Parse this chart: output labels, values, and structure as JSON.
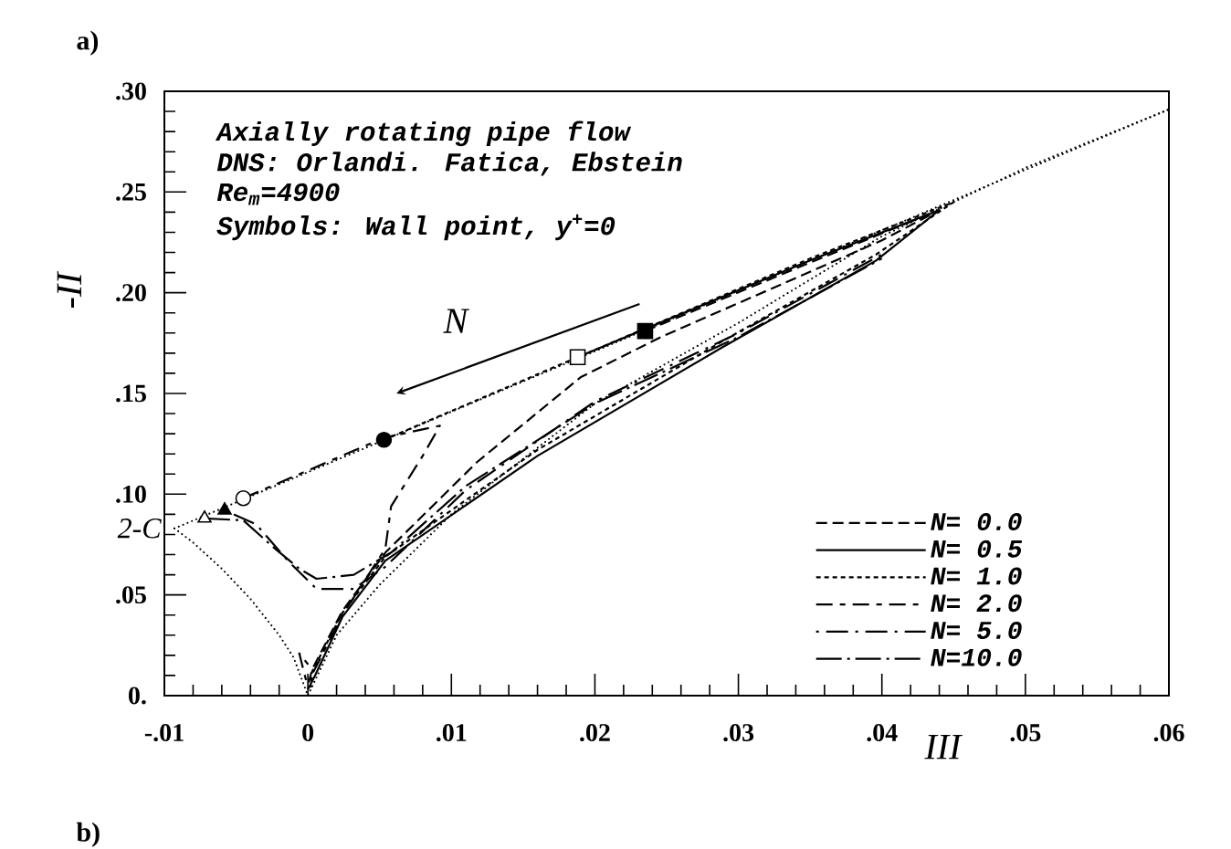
{
  "chart_data": {
    "type": "line",
    "xlabel": "III",
    "ylabel": "-II",
    "xlim": [
      -0.01,
      0.06
    ],
    "ylim": [
      0,
      0.3
    ],
    "xticks": [
      {
        "value": -0.01,
        "label": "-.01"
      },
      0,
      {
        "value": 0.01,
        "label": ".01"
      },
      {
        "value": 0.02,
        "label": ".02"
      },
      {
        "value": 0.03,
        "label": ".03"
      },
      {
        "value": 0.04,
        "label": ".04"
      },
      {
        "value": 0.05,
        "label": ".05"
      },
      {
        "value": 0.06,
        "label": ".06"
      }
    ],
    "yticks": [
      {
        "value": 0,
        "label": "0."
      },
      {
        "value": 0.05,
        "label": ".05"
      },
      {
        "value": 0.1,
        "label": ".10"
      },
      {
        "value": 0.15,
        "label": ".15"
      },
      {
        "value": 0.2,
        "label": ".20"
      },
      {
        "value": 0.25,
        "label": ".25"
      },
      {
        "value": 0.3,
        "label": ".30"
      }
    ],
    "grid": false,
    "legend": "bottom right",
    "annotations": [
      "a)",
      "Axially rotating pipe flow",
      "DNS: Orlandi. Fatica, Ebstein",
      "Re$_{m}$=4900",
      "Symbols: Wall point, y$^{+}$=0",
      "N",
      "b)",
      {
        "text": "2-C",
        "x": -0.0093,
        "y": 0.083
      }
    ],
    "series": [
      {
        "name": "N= 0.0",
        "color": "#000000",
        "line_style": "dashed",
        "marker": "none",
        "x": [
          0.0235,
          0.035,
          0.044,
          0.04,
          0.0246,
          0.019,
          0.0118,
          0.0054,
          0.0024,
          0.0003,
          0
        ],
        "values": [
          0.181,
          0.215,
          0.241,
          0.226,
          0.178,
          0.158,
          0.116,
          0.071,
          0.042,
          0.013,
          0.005
        ]
      },
      {
        "name": "N= 0.5",
        "color": "#000000",
        "line_style": "solid",
        "marker": "none",
        "x": [
          0.0188,
          0.0235,
          0.035,
          0.044,
          0.0396,
          0.0289,
          0.016,
          0.0054,
          0.0024,
          0.0005,
          0
        ],
        "values": [
          0.168,
          0.182,
          0.216,
          0.241,
          0.216,
          0.173,
          0.119,
          0.067,
          0.039,
          0.01,
          0.003
        ]
      },
      {
        "name": "N= 1.0",
        "color": "#000000",
        "line_style": "densely dashed",
        "marker": "none",
        "x": [
          0.0053,
          0.0188,
          0.035,
          0.045,
          0.0396,
          0.0289,
          0.016,
          0.0054,
          0.0024,
          0.0003,
          0.0002
        ],
        "values": [
          0.127,
          0.168,
          0.217,
          0.245,
          0.219,
          0.176,
          0.122,
          0.069,
          0.041,
          0.012,
          0.004
        ]
      },
      {
        "name": "N= 2.0",
        "color": "#000000",
        "line_style": "longdash",
        "marker": "none",
        "x": [
          -0.0045,
          0.0053,
          0.0092,
          0.008,
          0.0058,
          0.0054,
          0.0024,
          0.0004,
          -0.0006,
          0
        ],
        "values": [
          0.098,
          0.128,
          0.134,
          0.119,
          0.094,
          0.073,
          0.04,
          0.012,
          0.021,
          0.004
        ]
      },
      {
        "name": "N= 5.0",
        "color": "#000000",
        "line_style": "dashdot",
        "marker": "none",
        "x": [
          -0.0058,
          -0.0036,
          -0.0014,
          0.0006,
          0.0032,
          0.0054,
          0.011,
          0.02,
          0.03,
          0.04
        ],
        "values": [
          0.092,
          0.085,
          0.067,
          0.053,
          0.053,
          0.064,
          0.102,
          0.146,
          0.18,
          0.219
        ]
      },
      {
        "name": "N=10.0",
        "color": "#000000",
        "line_style": "longdashdot",
        "marker": "none",
        "x": [
          -0.0072,
          -0.0045,
          -0.0023,
          -0.0006,
          0.0006,
          0.0032,
          0.0058,
          0.011,
          0.02,
          0.03,
          0.04
        ],
        "values": [
          0.088,
          0.087,
          0.073,
          0.063,
          0.058,
          0.06,
          0.071,
          0.104,
          0.145,
          0.178,
          0.217
        ]
      },
      {
        "type": "scatter",
        "color": "#000000",
        "marker": "square",
        "x": [
          0.0235
        ],
        "values": [
          0.181
        ]
      },
      {
        "type": "scatter",
        "color": "#ffffff",
        "marker": "square",
        "x": [
          0.0188
        ],
        "values": [
          0.168
        ]
      },
      {
        "type": "scatter",
        "color": "#000000",
        "marker": "circle",
        "x": [
          0.0053
        ],
        "values": [
          0.127
        ]
      },
      {
        "type": "scatter",
        "color": "#ffffff",
        "marker": "circle",
        "x": [
          -0.0045
        ],
        "values": [
          0.098
        ]
      },
      {
        "type": "scatter",
        "color": "#000000",
        "marker": "triangle",
        "x": [
          -0.0058
        ],
        "values": [
          0.092
        ]
      },
      {
        "type": "scatter",
        "color": "#ffffff",
        "marker": "triangle",
        "x": [
          -0.0072
        ],
        "values": [
          0.088
        ]
      },
      {
        "color": "#000000",
        "line_style": "dotted",
        "marker": "none",
        "x": [
          -0.0093,
          -0.008,
          -0.006,
          -0.004,
          -0.002,
          -0.001,
          0,
          0.002,
          0.005,
          0.01,
          0.02,
          0.03,
          0.04,
          0.05,
          0.06
        ],
        "values": [
          0.083,
          0.076,
          0.063,
          0.048,
          0.03,
          0.019,
          0,
          0.03,
          0.055,
          0.09,
          0.145,
          0.185,
          0.228,
          0.262,
          0.291
        ]
      },
      {
        "color": "#000000",
        "line_style": "dotted",
        "marker": "none",
        "x": [
          -0.0093,
          0.06
        ],
        "values": [
          0.083,
          0.291
        ]
      }
    ]
  }
}
